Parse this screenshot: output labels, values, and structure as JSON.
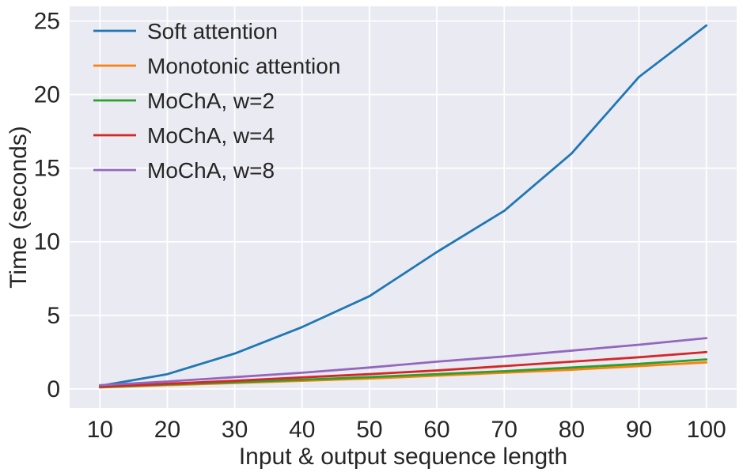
{
  "chart_data": {
    "type": "line",
    "title": "",
    "xlabel": "Input & output sequence length",
    "ylabel": "Time (seconds)",
    "x": [
      10,
      20,
      30,
      40,
      50,
      60,
      70,
      80,
      90,
      100
    ],
    "series": [
      {
        "name": "Soft attention",
        "color": "#1f77b4",
        "values": [
          0.2,
          1.0,
          2.4,
          4.2,
          6.3,
          9.3,
          12.1,
          16.0,
          21.2,
          24.7
        ]
      },
      {
        "name": "Monotonic attention",
        "color": "#ff7f0e",
        "values": [
          0.1,
          0.25,
          0.4,
          0.55,
          0.7,
          0.9,
          1.1,
          1.3,
          1.55,
          1.8
        ]
      },
      {
        "name": "MoChA, w=2",
        "color": "#2ca02c",
        "values": [
          0.12,
          0.3,
          0.45,
          0.62,
          0.8,
          1.0,
          1.2,
          1.45,
          1.7,
          2.0
        ]
      },
      {
        "name": "MoChA, w=4",
        "color": "#d62728",
        "values": [
          0.15,
          0.35,
          0.55,
          0.78,
          1.0,
          1.25,
          1.55,
          1.85,
          2.15,
          2.5
        ]
      },
      {
        "name": "MoChA, w=8",
        "color": "#9467bd",
        "values": [
          0.25,
          0.5,
          0.8,
          1.1,
          1.45,
          1.85,
          2.2,
          2.6,
          3.0,
          3.45
        ]
      }
    ],
    "xticks": [
      10,
      20,
      30,
      40,
      50,
      60,
      70,
      80,
      90,
      100
    ],
    "yticks": [
      0,
      5,
      10,
      15,
      20,
      25
    ],
    "xlim": [
      5.5,
      104.5
    ],
    "ylim": [
      -1.3,
      26.0
    ],
    "grid": true,
    "legend_position": "upper-left",
    "plot_bg": "#eaeaf2",
    "grid_color": "#ffffff",
    "text_color": "#262626"
  }
}
